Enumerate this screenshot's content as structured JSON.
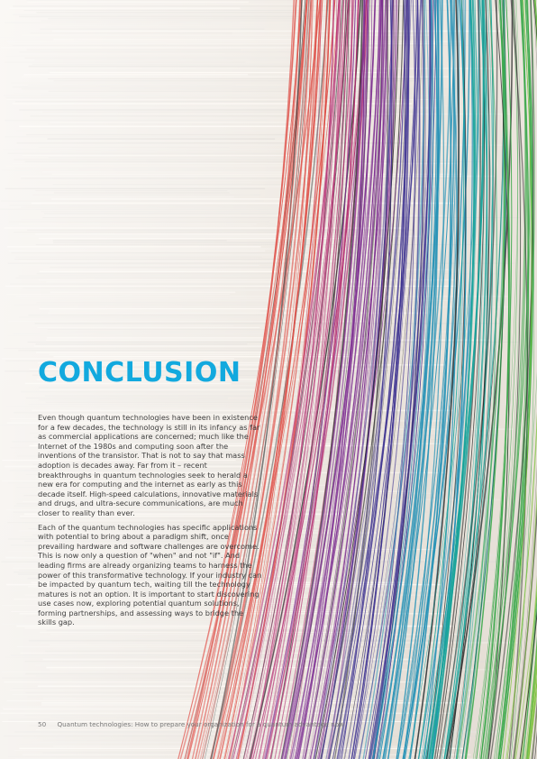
{
  "title": "CONCLUSION",
  "paragraphs": [
    "Even though quantum technologies have been in existence for a few decades, the technology is still in its infancy as far as commercial applications are concerned; much like the Internet of the 1980s and computing soon after the inventions of the transistor. That is not to say that mass adoption is decades away. Far from it – recent breakthroughs in quantum technologies seek to herald a new era for computing and the internet as early as this decade itself. High-speed calculations, innovative materials and drugs, and ultra-secure communications, are much closer to reality than ever.",
    "Each of the quantum technologies has specific applications with potential to bring about a paradigm shift, once prevailing hardware and software challenges are overcome. This is now only a question of \"when\" and not \"if\". And leading firms are already organizing teams to harness the power of this transformative technology. If your industry can be impacted by quantum tech, waiting till the technology matures is not an option. It is important to start discovering use cases now, exploring potential quantum solutions, forming partnerships, and assessing ways to bridge the skills gap."
  ],
  "footer": {
    "page_number": "50",
    "text": "Quantum technologies: How to prepare your organization for a quantum advantage now"
  },
  "colors": {
    "title": "#12a9de",
    "body": "#3f3f3f",
    "thread_palette": [
      "#d9342b",
      "#b0246a",
      "#7a2a8e",
      "#3a2f8f",
      "#1f8fb5",
      "#16a39a",
      "#3aa84a",
      "#7cc23a",
      "#2b2b2b"
    ]
  }
}
